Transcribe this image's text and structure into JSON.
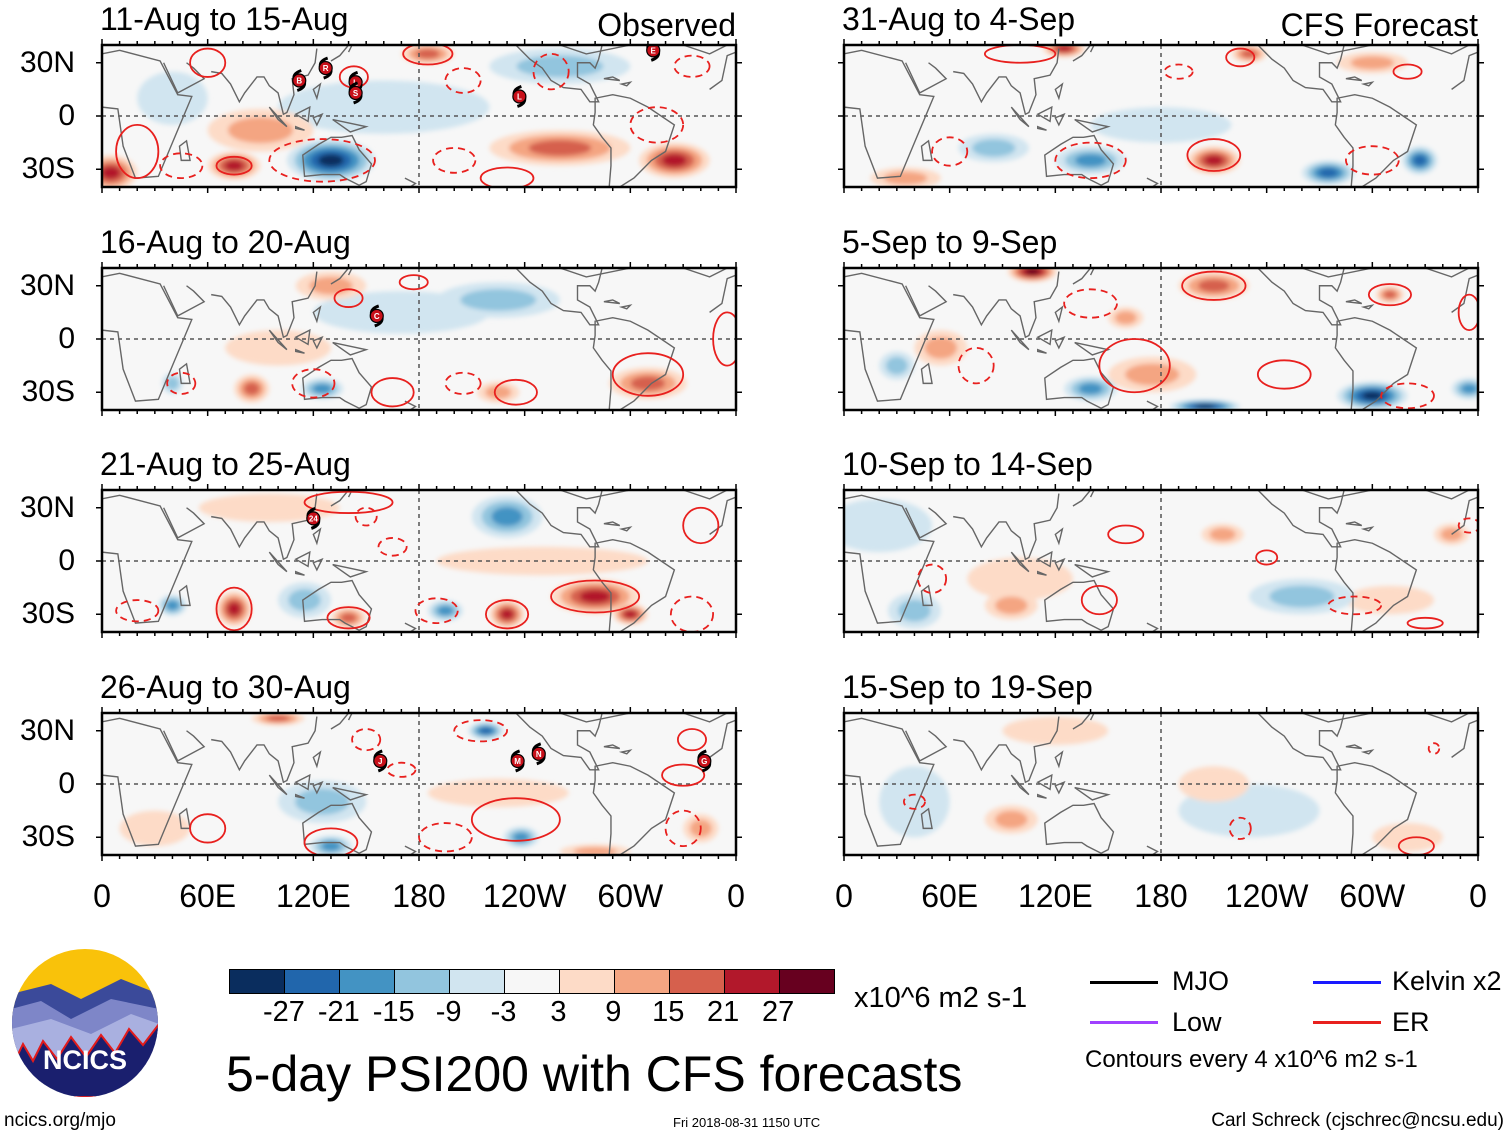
{
  "tags": {
    "observed": "Observed",
    "forecast": "CFS Forecast"
  },
  "lat_labels": [
    "30N",
    "0",
    "30S"
  ],
  "lon_labels": [
    "0",
    "60E",
    "120E",
    "180",
    "120W",
    "60W",
    "0"
  ],
  "colors": {
    "pos": [
      "#fddbc7",
      "#f4a582",
      "#d6604d",
      "#b2182b",
      "#67001f"
    ],
    "neg": [
      "#d1e5f0",
      "#92c5de",
      "#4393c3",
      "#2166ac",
      "#0a2d5e"
    ],
    "neutral": "#f7f7f7",
    "contour": "#e8201e",
    "land": "#666666"
  },
  "panels": [
    {
      "title": "11-Aug to 15-Aug",
      "kind": "observed",
      "anomalies": [
        [
          160,
          5,
          -3,
          60,
          15
        ],
        [
          40,
          10,
          -3,
          20,
          15
        ],
        [
          90,
          -8,
          9,
          30,
          12
        ],
        [
          260,
          -18,
          15,
          40,
          10
        ],
        [
          260,
          28,
          -9,
          40,
          10
        ],
        [
          130,
          -25,
          -27,
          25,
          12
        ],
        [
          75,
          -28,
          21,
          15,
          8
        ],
        [
          5,
          -32,
          21,
          15,
          10
        ],
        [
          325,
          -25,
          21,
          20,
          10
        ],
        [
          185,
          35,
          15,
          15,
          6
        ]
      ],
      "contours": [
        [
          185,
          35,
          14,
          6,
          "pos"
        ],
        [
          205,
          20,
          10,
          7,
          "neg"
        ],
        [
          143,
          22,
          8,
          6,
          "pos"
        ],
        [
          60,
          30,
          10,
          8,
          "pos"
        ],
        [
          20,
          -20,
          12,
          15,
          "pos"
        ],
        [
          75,
          -28,
          10,
          5,
          "pos"
        ],
        [
          45,
          -28,
          12,
          7,
          "neg"
        ],
        [
          125,
          -25,
          30,
          12,
          "neg"
        ],
        [
          230,
          -35,
          15,
          6,
          "pos"
        ],
        [
          200,
          -25,
          12,
          7,
          "neg"
        ],
        [
          315,
          -5,
          15,
          10,
          "neg"
        ],
        [
          335,
          28,
          10,
          6,
          "neg"
        ],
        [
          255,
          25,
          10,
          10,
          "neg"
        ]
      ],
      "storms": [
        [
          112,
          20,
          "B"
        ],
        [
          127,
          27,
          "R"
        ],
        [
          144,
          19,
          "L"
        ],
        [
          144,
          13,
          "S"
        ],
        [
          237,
          11,
          "L"
        ],
        [
          313,
          37,
          "E"
        ]
      ]
    },
    {
      "title": "16-Aug to 20-Aug",
      "kind": "observed",
      "anomalies": [
        [
          100,
          -5,
          3,
          30,
          10
        ],
        [
          170,
          15,
          -3,
          50,
          12
        ],
        [
          130,
          30,
          9,
          20,
          8
        ],
        [
          225,
          22,
          -9,
          35,
          10
        ],
        [
          85,
          -28,
          15,
          10,
          8
        ],
        [
          125,
          -28,
          -15,
          12,
          6
        ],
        [
          225,
          -30,
          9,
          12,
          6
        ],
        [
          310,
          -25,
          15,
          22,
          9
        ],
        [
          40,
          -25,
          -9,
          6,
          6
        ]
      ],
      "contours": [
        [
          140,
          23,
          8,
          5,
          "pos"
        ],
        [
          177,
          32,
          8,
          4,
          "pos"
        ],
        [
          310,
          -20,
          20,
          12,
          "pos"
        ],
        [
          235,
          -30,
          12,
          7,
          "pos"
        ],
        [
          165,
          -30,
          12,
          8,
          "pos"
        ],
        [
          205,
          -25,
          10,
          6,
          "neg"
        ],
        [
          120,
          -25,
          12,
          8,
          "neg"
        ],
        [
          45,
          -25,
          8,
          6,
          "neg"
        ],
        [
          355,
          0,
          8,
          15,
          "pos"
        ]
      ],
      "storms": [
        [
          156,
          13,
          "C"
        ]
      ]
    },
    {
      "title": "21-Aug to 25-Aug",
      "kind": "observed",
      "anomalies": [
        [
          95,
          30,
          3,
          40,
          8
        ],
        [
          250,
          0,
          3,
          60,
          8
        ],
        [
          115,
          -22,
          -9,
          15,
          10
        ],
        [
          230,
          25,
          -15,
          20,
          12
        ],
        [
          75,
          -27,
          21,
          10,
          10
        ],
        [
          140,
          -32,
          15,
          10,
          6
        ],
        [
          230,
          -30,
          21,
          10,
          8
        ],
        [
          280,
          -20,
          21,
          25,
          10
        ],
        [
          300,
          -30,
          21,
          10,
          6
        ],
        [
          40,
          -25,
          -15,
          8,
          6
        ],
        [
          195,
          -28,
          -15,
          10,
          6
        ]
      ],
      "contours": [
        [
          75,
          -27,
          10,
          12,
          "pos"
        ],
        [
          140,
          -32,
          12,
          6,
          "pos"
        ],
        [
          230,
          -30,
          12,
          8,
          "pos"
        ],
        [
          280,
          -20,
          25,
          9,
          "pos"
        ],
        [
          190,
          -28,
          12,
          7,
          "neg"
        ],
        [
          150,
          25,
          6,
          5,
          "neg"
        ],
        [
          165,
          8,
          8,
          5,
          "neg"
        ],
        [
          140,
          33,
          25,
          6,
          "pos"
        ],
        [
          340,
          20,
          10,
          10,
          "pos"
        ],
        [
          335,
          -30,
          12,
          10,
          "neg"
        ],
        [
          20,
          -28,
          12,
          6,
          "neg"
        ]
      ],
      "storms": [
        [
          120,
          24,
          "24"
        ]
      ]
    },
    {
      "title": "26-Aug to 30-Aug",
      "kind": "observed",
      "anomalies": [
        [
          225,
          -5,
          3,
          40,
          8
        ],
        [
          125,
          -10,
          -9,
          25,
          12
        ],
        [
          30,
          -25,
          3,
          20,
          10
        ],
        [
          100,
          37,
          15,
          15,
          4
        ],
        [
          340,
          -25,
          9,
          10,
          8
        ],
        [
          280,
          -38,
          9,
          20,
          4
        ],
        [
          130,
          -35,
          -15,
          12,
          6
        ],
        [
          238,
          -30,
          -15,
          10,
          6
        ],
        [
          218,
          30,
          -21,
          10,
          5
        ]
      ],
      "contours": [
        [
          130,
          -33,
          15,
          8,
          "pos"
        ],
        [
          235,
          -20,
          25,
          12,
          "pos"
        ],
        [
          60,
          -25,
          10,
          8,
          "pos"
        ],
        [
          215,
          30,
          15,
          6,
          "neg"
        ],
        [
          330,
          5,
          12,
          6,
          "pos"
        ],
        [
          195,
          -30,
          15,
          8,
          "neg"
        ],
        [
          150,
          25,
          8,
          6,
          "neg"
        ],
        [
          170,
          8,
          8,
          4,
          "neg"
        ],
        [
          330,
          -25,
          10,
          10,
          "neg"
        ],
        [
          335,
          25,
          8,
          6,
          "pos"
        ]
      ],
      "storms": [
        [
          158,
          13,
          "J"
        ],
        [
          236,
          13,
          "M"
        ],
        [
          248,
          17,
          "N"
        ],
        [
          342,
          13,
          "G"
        ]
      ]
    },
    {
      "title": "31-Aug to 4-Sep",
      "kind": "forecast",
      "anomalies": [
        [
          180,
          -5,
          -3,
          40,
          10
        ],
        [
          35,
          -35,
          9,
          20,
          6
        ],
        [
          300,
          30,
          9,
          20,
          6
        ],
        [
          85,
          -18,
          -9,
          20,
          8
        ],
        [
          125,
          38,
          21,
          12,
          5
        ],
        [
          230,
          35,
          15,
          10,
          5
        ],
        [
          140,
          -25,
          -15,
          20,
          8
        ],
        [
          210,
          -25,
          21,
          15,
          8
        ],
        [
          275,
          -32,
          -21,
          15,
          7
        ],
        [
          327,
          -25,
          -21,
          10,
          8
        ]
      ],
      "contours": [
        [
          210,
          -22,
          15,
          9,
          "pos"
        ],
        [
          300,
          -25,
          15,
          8,
          "neg"
        ],
        [
          225,
          33,
          8,
          5,
          "pos"
        ],
        [
          320,
          25,
          8,
          4,
          "pos"
        ],
        [
          100,
          35,
          20,
          5,
          "pos"
        ],
        [
          140,
          -25,
          20,
          10,
          "neg"
        ],
        [
          60,
          -20,
          10,
          8,
          "neg"
        ],
        [
          190,
          25,
          8,
          4,
          "neg"
        ]
      ],
      "storms": []
    },
    {
      "title": "5-Sep to 9-Sep",
      "kind": "forecast",
      "anomalies": [
        [
          55,
          -5,
          9,
          15,
          10
        ],
        [
          175,
          -20,
          9,
          25,
          10
        ],
        [
          30,
          -15,
          -9,
          10,
          8
        ],
        [
          160,
          12,
          9,
          10,
          6
        ],
        [
          107,
          38,
          27,
          14,
          6
        ],
        [
          210,
          30,
          15,
          20,
          8
        ],
        [
          310,
          25,
          15,
          8,
          5
        ],
        [
          140,
          -28,
          -15,
          15,
          7
        ],
        [
          300,
          -32,
          -27,
          20,
          8
        ],
        [
          205,
          -38,
          -27,
          20,
          4
        ],
        [
          355,
          -28,
          -15,
          10,
          6
        ]
      ],
      "contours": [
        [
          210,
          30,
          18,
          8,
          "pos"
        ],
        [
          310,
          25,
          12,
          6,
          "pos"
        ],
        [
          165,
          -15,
          20,
          15,
          "pos"
        ],
        [
          250,
          -20,
          15,
          8,
          "pos"
        ],
        [
          75,
          -15,
          10,
          10,
          "neg"
        ],
        [
          320,
          -32,
          15,
          7,
          "neg"
        ],
        [
          140,
          20,
          15,
          8,
          "neg"
        ],
        [
          355,
          15,
          6,
          10,
          "pos"
        ]
      ],
      "storms": []
    },
    {
      "title": "10-Sep to 14-Sep",
      "kind": "forecast",
      "anomalies": [
        [
          20,
          20,
          -3,
          30,
          15
        ],
        [
          100,
          -10,
          3,
          30,
          12
        ],
        [
          95,
          -25,
          9,
          15,
          8
        ],
        [
          215,
          15,
          9,
          12,
          6
        ],
        [
          345,
          15,
          9,
          10,
          6
        ],
        [
          310,
          -22,
          3,
          25,
          8
        ],
        [
          40,
          -28,
          -9,
          15,
          10
        ],
        [
          260,
          -20,
          -9,
          30,
          10
        ]
      ],
      "contours": [
        [
          160,
          15,
          10,
          5,
          "pos"
        ],
        [
          240,
          2,
          6,
          4,
          "pos"
        ],
        [
          145,
          -22,
          10,
          8,
          "pos"
        ],
        [
          330,
          -35,
          10,
          3,
          "pos"
        ],
        [
          290,
          -25,
          15,
          5,
          "neg"
        ],
        [
          355,
          20,
          6,
          4,
          "neg"
        ],
        [
          50,
          -10,
          8,
          8,
          "neg"
        ]
      ],
      "storms": []
    },
    {
      "title": "15-Sep to 19-Sep",
      "kind": "forecast",
      "anomalies": [
        [
          40,
          -10,
          -3,
          20,
          20
        ],
        [
          230,
          -15,
          -3,
          40,
          15
        ],
        [
          120,
          30,
          3,
          30,
          8
        ],
        [
          210,
          0,
          3,
          20,
          10
        ],
        [
          320,
          -30,
          3,
          20,
          8
        ],
        [
          95,
          -20,
          9,
          15,
          8
        ]
      ],
      "contours": [
        [
          325,
          -35,
          10,
          5,
          "pos"
        ],
        [
          40,
          -10,
          6,
          4,
          "neg"
        ],
        [
          225,
          -25,
          6,
          6,
          "neg"
        ],
        [
          335,
          20,
          3,
          3,
          "neg"
        ]
      ],
      "storms": []
    }
  ],
  "colorbar": {
    "labels": [
      "-27",
      "-21",
      "-15",
      "-9",
      "-3",
      "3",
      "9",
      "15",
      "21",
      "27"
    ],
    "units": "x10^6 m2 s-1"
  },
  "title": "5-day PSI200 with CFS forecasts",
  "legend": {
    "items": [
      {
        "label": "MJO",
        "color": "#000000"
      },
      {
        "label": "Kelvin x2",
        "color": "#1a1aff"
      },
      {
        "label": "Low",
        "color": "#a040ff"
      },
      {
        "label": "ER",
        "color": "#e8201e"
      }
    ],
    "note": "Contours every 4 x10^6 m2 s-1"
  },
  "logo_text": "NCICS",
  "footer": {
    "left": "ncics.org/mjo",
    "center": "Fri 2018-08-31 1150 UTC",
    "right": "Carl Schreck (cjschrec@ncsu.edu)"
  }
}
